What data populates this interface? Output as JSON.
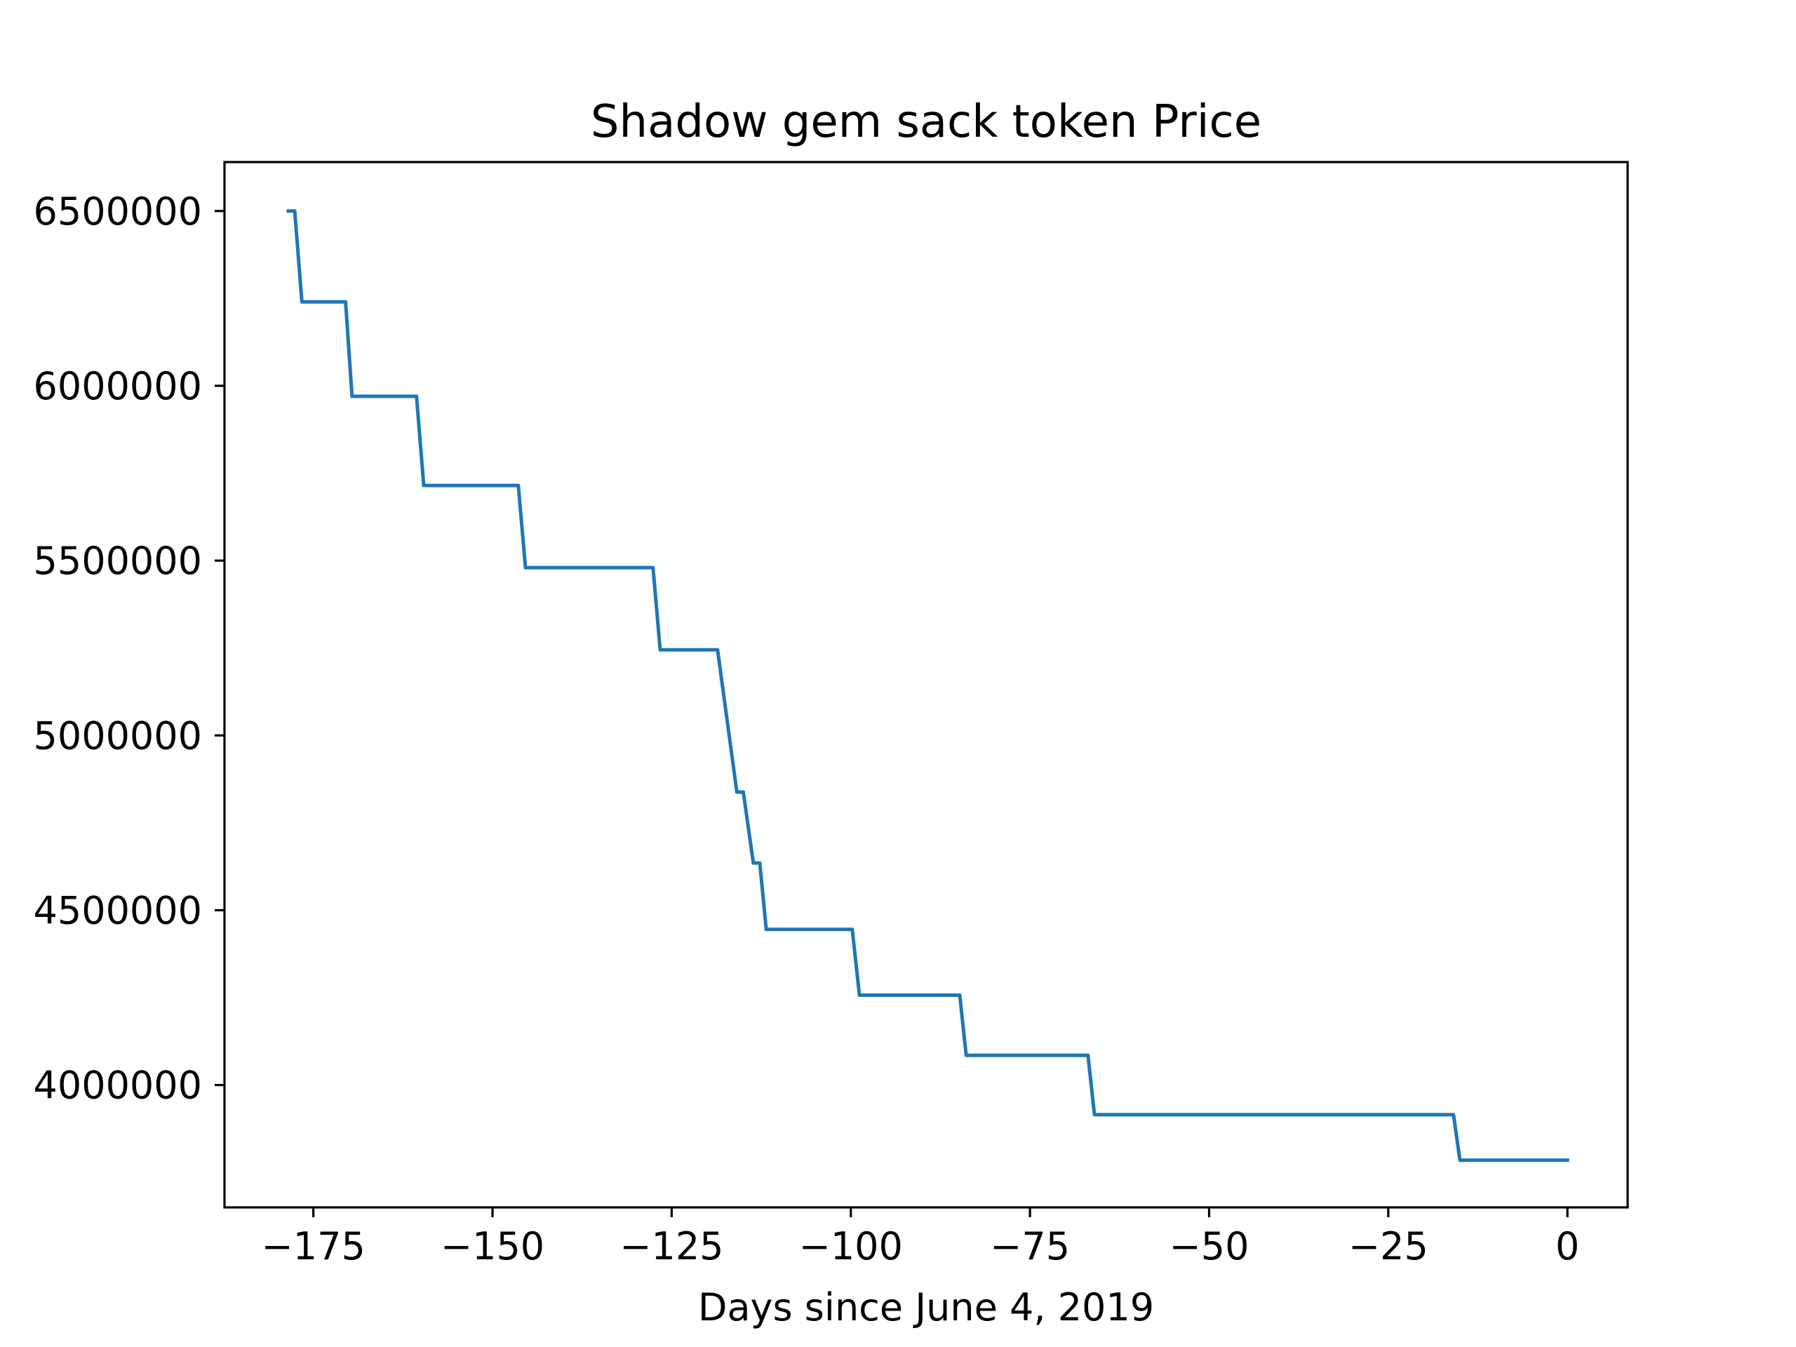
{
  "chart_data": {
    "type": "line",
    "title": "Shadow gem sack token Price",
    "xlabel": "Days since June 4, 2019",
    "ylabel": "",
    "xlim": [
      -187.4,
      8.4
    ],
    "ylim": [
      3650000,
      6640000
    ],
    "xticks": [
      -175,
      -150,
      -125,
      -100,
      -75,
      -50,
      -25,
      0
    ],
    "xtick_labels": [
      "−175",
      "−150",
      "−125",
      "−100",
      "−75",
      "−50",
      "−25",
      "0"
    ],
    "yticks": [
      4000000,
      4500000,
      5000000,
      5500000,
      6000000,
      6500000
    ],
    "ytick_labels": [
      "4000000",
      "4500000",
      "5000000",
      "5500000",
      "6000000",
      "6500000"
    ],
    "grid": false,
    "line_color": "#1f77b4",
    "series": [
      {
        "x": [
          -178.5,
          -177.6,
          -176.6,
          -170.5,
          -169.6,
          -160.6,
          -159.6,
          -146.4,
          -145.4,
          -127.6,
          -126.6,
          -118.6,
          -115.9,
          -115.0,
          -113.6,
          -112.7,
          -111.8,
          -99.8,
          -98.8,
          -84.8,
          -83.9,
          -66.9,
          -66.0,
          -15.9,
          -15.0,
          0
        ],
        "y": [
          6500000,
          6500000,
          6240000,
          6240000,
          5970000,
          5970000,
          5715000,
          5715000,
          5480000,
          5480000,
          5245000,
          5245000,
          4838000,
          4838000,
          4635000,
          4635000,
          4445000,
          4445000,
          4257000,
          4257000,
          4085000,
          4085000,
          3915000,
          3915000,
          3785000,
          3785000
        ]
      }
    ]
  }
}
